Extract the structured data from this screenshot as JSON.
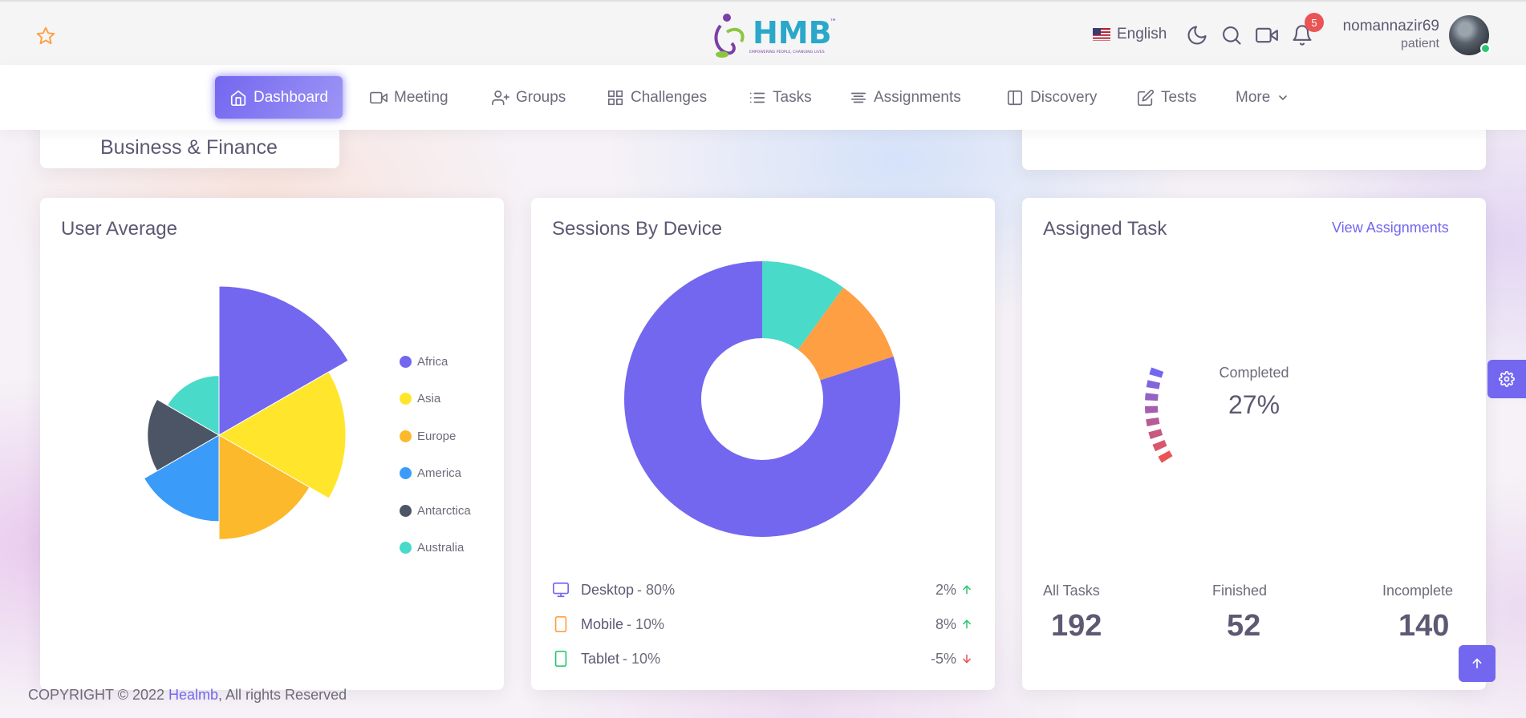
{
  "header": {
    "language": "English",
    "notification_count": "5",
    "user_name": "nomannazir69",
    "user_role": "patient",
    "logo_text": "HMB",
    "logo_tagline": "EMPOWERING PEOPLE, CHANGING LIVES"
  },
  "nav": {
    "items": [
      {
        "label": "Dashboard",
        "icon": "home-icon",
        "active": true
      },
      {
        "label": "Meeting",
        "icon": "video-icon"
      },
      {
        "label": "Groups",
        "icon": "user-plus-icon"
      },
      {
        "label": "Challenges",
        "icon": "grid-icon"
      },
      {
        "label": "Tasks",
        "icon": "list-icon"
      },
      {
        "label": "Assignments",
        "icon": "align-center-icon"
      },
      {
        "label": "Discovery",
        "icon": "book-icon"
      },
      {
        "label": "Tests",
        "icon": "edit-icon"
      },
      {
        "label": "More",
        "icon": "chevron-down-icon"
      }
    ]
  },
  "business_card": {
    "label": "Business & Finance"
  },
  "user_average": {
    "title": "User Average",
    "legend": [
      "Africa",
      "Asia",
      "Europe",
      "America",
      "Antarctica",
      "Australia"
    ]
  },
  "sessions_by_device": {
    "title": "Sessions By Device",
    "devices": [
      {
        "name": "Desktop",
        "share": "- 80%",
        "change": "2%",
        "trend": "up",
        "icon": "monitor-icon"
      },
      {
        "name": "Mobile",
        "share": "- 10%",
        "change": "8%",
        "trend": "up",
        "icon": "tablet-icon"
      },
      {
        "name": "Tablet",
        "share": "- 10%",
        "change": "-5%",
        "trend": "down",
        "icon": "tablet-icon"
      }
    ]
  },
  "assigned_task": {
    "title": "Assigned Task",
    "link": "View Assignments",
    "radial_label": "Completed",
    "radial_value": "27%",
    "stats": [
      {
        "label": "All Tasks",
        "value": "192"
      },
      {
        "label": "Finished",
        "value": "52"
      },
      {
        "label": "Incomplete",
        "value": "140"
      }
    ]
  },
  "footer": {
    "prefix": "COPYRIGHT © 2022 ",
    "link": "Healmb",
    "suffix": ", All rights Reserved"
  },
  "colors": {
    "primary": "#7367f0",
    "africa": "#7367f0",
    "asia": "#ffe62d",
    "europe": "#fcb92c",
    "america": "#3a9cf8",
    "antarctica": "#4b5565",
    "australia": "#49dac9",
    "success": "#28c76f",
    "danger": "#ea5455",
    "warning": "#ff9f43"
  },
  "chart_data": [
    {
      "type": "polar-area",
      "title": "User Average",
      "categories": [
        "Africa",
        "Asia",
        "Europe",
        "America",
        "Antarctica",
        "Australia"
      ],
      "values": [
        100,
        85,
        70,
        58,
        48,
        40
      ]
    },
    {
      "type": "donut",
      "title": "Sessions By Device",
      "categories": [
        "Desktop",
        "Mobile",
        "Tablet"
      ],
      "values": [
        80,
        10,
        10
      ]
    },
    {
      "type": "radial-bar",
      "title": "Assigned Task",
      "categories": [
        "Completed"
      ],
      "values": [
        27
      ]
    }
  ]
}
